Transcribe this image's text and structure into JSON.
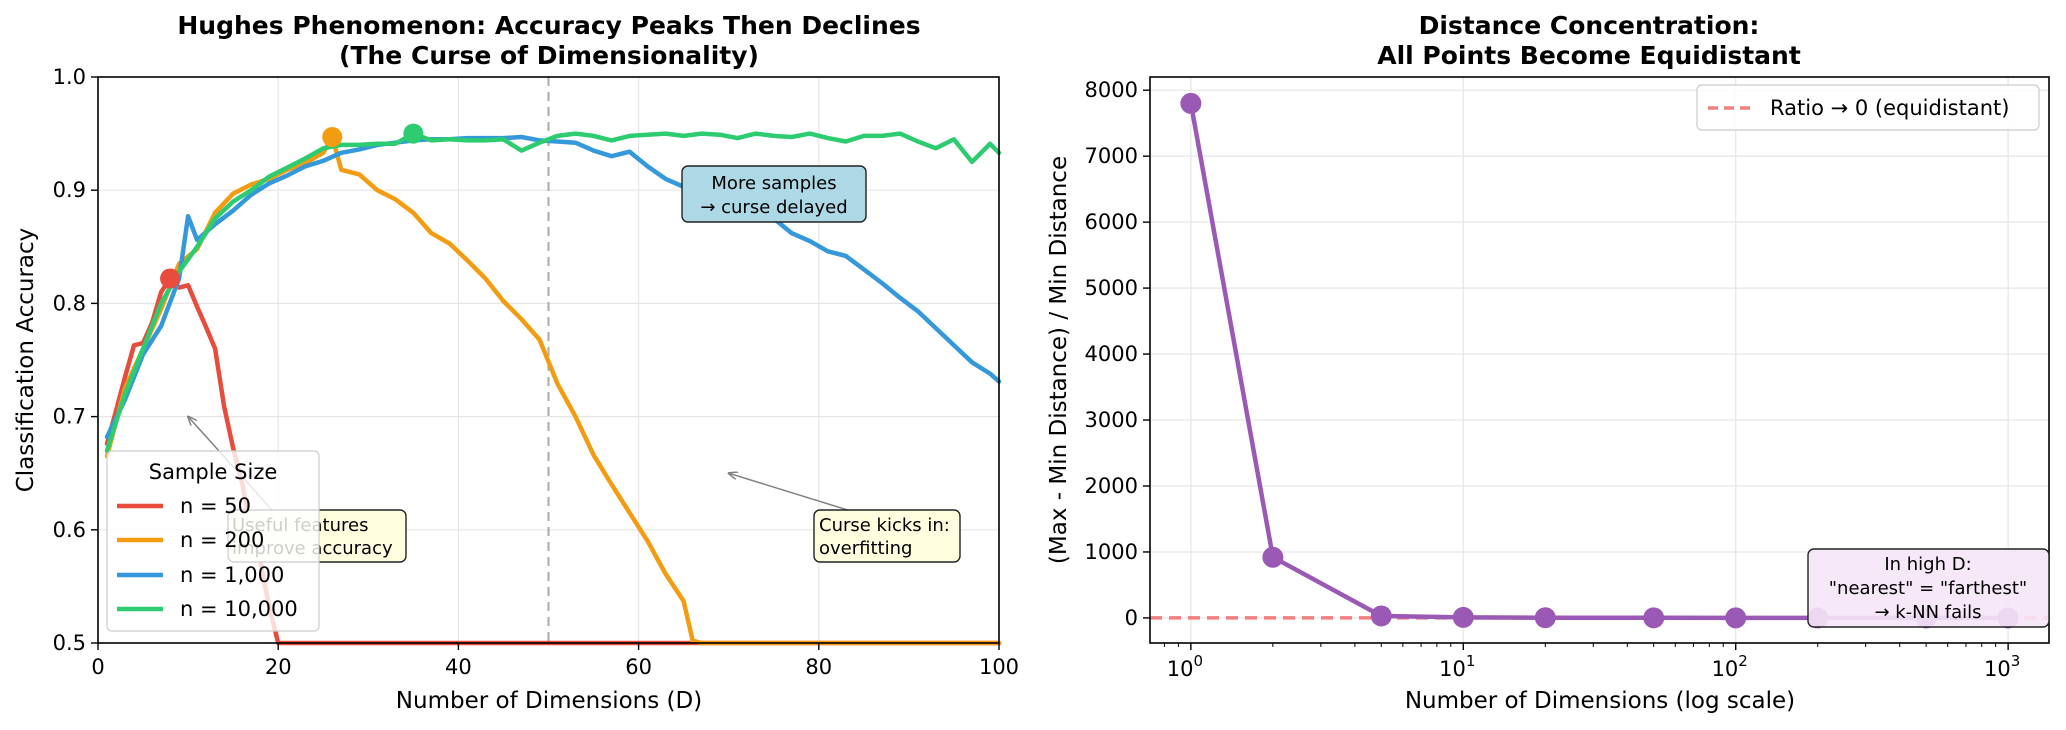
{
  "chart_data": [
    {
      "type": "line",
      "title_line1": "Hughes Phenomenon: Accuracy Peaks Then Declines",
      "title_line2": "(The Curse of Dimensionality)",
      "xlabel": "Number of Dimensions (D)",
      "ylabel": "Classification Accuracy",
      "xlim": [
        0,
        100
      ],
      "ylim": [
        0.5,
        1.0
      ],
      "xticks": [
        "0",
        "20",
        "40",
        "60",
        "80",
        "100"
      ],
      "yticks": [
        "0.5",
        "0.6",
        "0.7",
        "0.8",
        "0.9",
        "1.0"
      ],
      "grid": true,
      "vline": {
        "x": 50,
        "color": "#b0b0b0",
        "style": "dashed"
      },
      "legend": {
        "title": "Sample Size",
        "placement": "lower-left"
      },
      "series": [
        {
          "name": "n = 50",
          "color": "#e74c3c",
          "x": [
            1,
            2,
            3,
            4,
            5,
            6,
            7,
            8,
            9,
            10,
            11,
            12,
            13,
            14,
            15,
            16,
            17,
            18,
            19,
            20,
            21,
            22,
            100
          ],
          "y": [
            0.676,
            0.705,
            0.735,
            0.763,
            0.765,
            0.783,
            0.81,
            0.822,
            0.814,
            0.816,
            0.797,
            0.779,
            0.76,
            0.709,
            0.672,
            0.641,
            0.598,
            0.572,
            0.532,
            0.5,
            0.5,
            0.5,
            0.5
          ],
          "peak": {
            "x": 8,
            "y": 0.822
          }
        },
        {
          "name": "n = 200",
          "color": "#f39c12",
          "x": [
            1,
            3,
            5,
            7,
            9,
            11,
            13,
            15,
            17,
            19,
            21,
            23,
            25,
            26,
            27,
            29,
            31,
            33,
            35,
            37,
            39,
            41,
            43,
            45,
            47,
            49,
            51,
            53,
            55,
            57,
            59,
            61,
            63,
            65,
            66,
            67,
            70,
            100
          ],
          "y": [
            0.665,
            0.725,
            0.76,
            0.795,
            0.835,
            0.848,
            0.88,
            0.897,
            0.905,
            0.91,
            0.918,
            0.924,
            0.933,
            0.947,
            0.918,
            0.914,
            0.9,
            0.892,
            0.88,
            0.862,
            0.853,
            0.838,
            0.822,
            0.802,
            0.786,
            0.768,
            0.729,
            0.7,
            0.666,
            0.64,
            0.615,
            0.59,
            0.561,
            0.537,
            0.502,
            0.5,
            0.5,
            0.5
          ],
          "peak": {
            "x": 26,
            "y": 0.947
          }
        },
        {
          "name": "n = 1,000",
          "color": "#3498db",
          "x": [
            1,
            3,
            5,
            7,
            9,
            10,
            11,
            13,
            15,
            17,
            19,
            21,
            23,
            25,
            27,
            29,
            31,
            33,
            35,
            37,
            39,
            41,
            43,
            45,
            47,
            49,
            51,
            53,
            55,
            57,
            59,
            61,
            63,
            65,
            67,
            69,
            71,
            73,
            75,
            77,
            79,
            81,
            83,
            85,
            87,
            89,
            91,
            93,
            95,
            97,
            99,
            100
          ],
          "y": [
            0.682,
            0.715,
            0.755,
            0.78,
            0.822,
            0.877,
            0.856,
            0.87,
            0.882,
            0.896,
            0.906,
            0.913,
            0.921,
            0.926,
            0.933,
            0.936,
            0.94,
            0.942,
            0.944,
            0.945,
            0.945,
            0.946,
            0.946,
            0.946,
            0.947,
            0.944,
            0.943,
            0.942,
            0.935,
            0.93,
            0.934,
            0.921,
            0.91,
            0.903,
            0.895,
            0.889,
            0.886,
            0.878,
            0.875,
            0.862,
            0.855,
            0.846,
            0.842,
            0.83,
            0.818,
            0.805,
            0.793,
            0.778,
            0.763,
            0.748,
            0.738,
            0.731
          ],
          "peak": null
        },
        {
          "name": "n = 10,000",
          "color": "#2ecc71",
          "x": [
            1,
            3,
            5,
            7,
            9,
            11,
            13,
            15,
            17,
            19,
            21,
            23,
            25,
            27,
            29,
            31,
            33,
            35,
            37,
            39,
            41,
            43,
            45,
            47,
            49,
            51,
            53,
            55,
            57,
            59,
            61,
            63,
            65,
            67,
            69,
            71,
            73,
            75,
            77,
            79,
            81,
            83,
            85,
            87,
            89,
            91,
            93,
            95,
            97,
            99,
            100
          ],
          "y": [
            0.67,
            0.72,
            0.76,
            0.8,
            0.828,
            0.85,
            0.875,
            0.89,
            0.9,
            0.912,
            0.92,
            0.928,
            0.937,
            0.94,
            0.94,
            0.941,
            0.941,
            0.95,
            0.944,
            0.945,
            0.944,
            0.944,
            0.945,
            0.935,
            0.942,
            0.948,
            0.95,
            0.948,
            0.944,
            0.948,
            0.949,
            0.95,
            0.948,
            0.95,
            0.949,
            0.946,
            0.95,
            0.948,
            0.947,
            0.95,
            0.946,
            0.943,
            0.948,
            0.948,
            0.95,
            0.943,
            0.937,
            0.945,
            0.925,
            0.941,
            0.933
          ],
          "peak": {
            "x": 35,
            "y": 0.95
          }
        }
      ],
      "annotations": [
        {
          "text_lines": [
            "More samples",
            "→ curse delayed"
          ],
          "bg": "#add8e6"
        },
        {
          "text_lines": [
            "Useful features",
            "improve accuracy"
          ],
          "bg": "#ffffe0",
          "arrow_to": {
            "x": 10,
            "y": 0.7
          }
        },
        {
          "text_lines": [
            "Curse kicks in:",
            "overfitting"
          ],
          "bg": "#ffffe0",
          "arrow_to": {
            "x": 70,
            "y": 0.65
          }
        }
      ]
    },
    {
      "type": "line",
      "title_line1": "Distance Concentration:",
      "title_line2": "All Points Become Equidistant",
      "xlabel": "Number of Dimensions (log scale)",
      "ylabel": "(Max - Min Distance) / Min Distance",
      "xscale": "log",
      "xlim_log10": [
        -0.15,
        3.15
      ],
      "ylim": [
        -380,
        8200
      ],
      "xticks": [
        {
          "base": "10",
          "exp": "0"
        },
        {
          "base": "10",
          "exp": "1"
        },
        {
          "base": "10",
          "exp": "2"
        },
        {
          "base": "10",
          "exp": "3"
        }
      ],
      "yticks": [
        "0",
        "1000",
        "2000",
        "3000",
        "4000",
        "5000",
        "6000",
        "7000",
        "8000"
      ],
      "grid": true,
      "legend": {
        "placement": "upper-right"
      },
      "reference_line": {
        "y": 0,
        "label": "Ratio → 0 (equidistant)",
        "color": "#f08080",
        "style": "dashed"
      },
      "series": [
        {
          "name": "",
          "color": "#9b59b6",
          "x": [
            1,
            2,
            5,
            10,
            20,
            50,
            100,
            200,
            500,
            1000
          ],
          "y": [
            7800,
            920,
            30,
            8,
            3,
            1.5,
            1,
            0.6,
            0.3,
            0.2
          ]
        }
      ],
      "annotations": [
        {
          "text_lines": [
            "In high D:",
            "\"nearest\" = \"farthest\"",
            "→ k-NN fails"
          ],
          "bg": "#f5e6f7"
        }
      ]
    }
  ]
}
